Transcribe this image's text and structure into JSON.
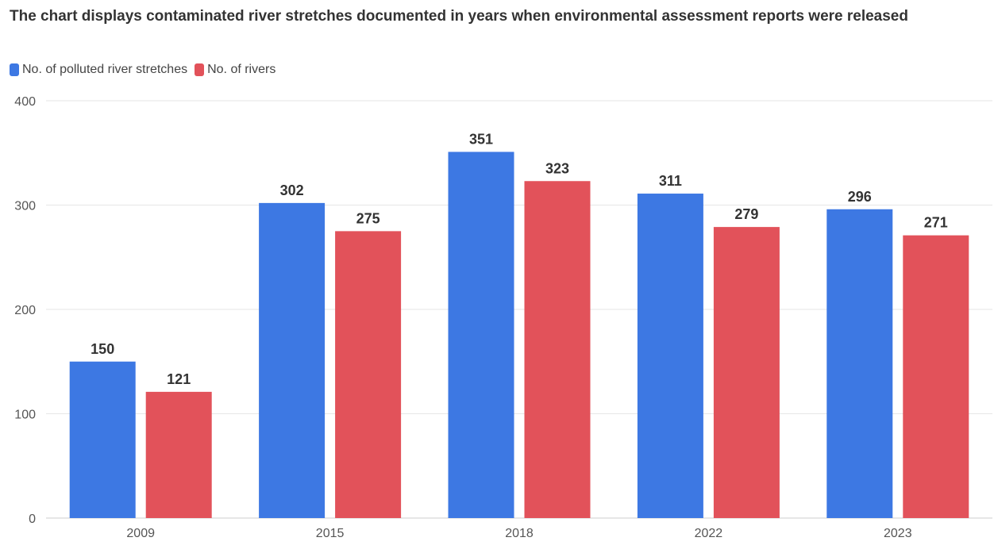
{
  "title": "The chart displays contaminated river stretches documented in years when environmental assessment reports were released",
  "legend": {
    "series_0": "No. of polluted river stretches",
    "series_1": "No. of rivers"
  },
  "colors": {
    "series_0": "#3d78e3",
    "series_1": "#e2525a",
    "grid": "#e6e6e6",
    "axis": "#cccccc"
  },
  "chart_data": {
    "type": "bar",
    "categories": [
      "2009",
      "2015",
      "2018",
      "2022",
      "2023"
    ],
    "series": [
      {
        "name": "No. of polluted river stretches",
        "values": [
          150,
          302,
          351,
          311,
          296
        ]
      },
      {
        "name": "No. of rivers",
        "values": [
          121,
          275,
          323,
          279,
          271
        ]
      }
    ],
    "ylim": [
      0,
      400
    ],
    "yticks": [
      0,
      100,
      200,
      300,
      400
    ],
    "grid": true,
    "legend_position": "top-left",
    "xlabel": "",
    "ylabel": ""
  }
}
